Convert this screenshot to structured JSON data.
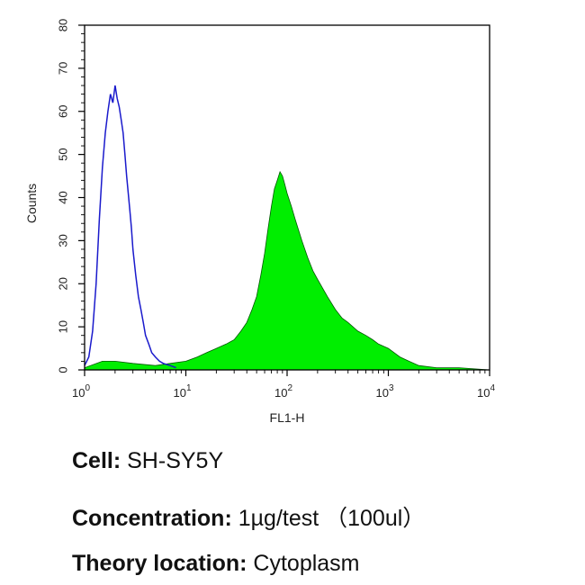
{
  "chart_data": {
    "type": "area",
    "xlabel": "FL1-H",
    "ylabel": "Counts",
    "x_scale": "log",
    "xlim": [
      1,
      10000
    ],
    "ylim": [
      0,
      80
    ],
    "x_ticks": [
      {
        "base": "10",
        "exp": "0",
        "value": 1
      },
      {
        "base": "10",
        "exp": "1",
        "value": 10
      },
      {
        "base": "10",
        "exp": "2",
        "value": 100
      },
      {
        "base": "10",
        "exp": "3",
        "value": 1000
      },
      {
        "base": "10",
        "exp": "4",
        "value": 10000
      }
    ],
    "y_ticks": [
      "0",
      "10",
      "20",
      "30",
      "40",
      "50",
      "60",
      "70",
      "80"
    ],
    "grid": false,
    "series": [
      {
        "style": "outline",
        "color": "#1a1acc",
        "x": [
          1.0,
          1.1,
          1.2,
          1.3,
          1.4,
          1.5,
          1.6,
          1.7,
          1.8,
          1.9,
          2.0,
          2.1,
          2.2,
          2.3,
          2.4,
          2.5,
          2.6,
          2.7,
          2.8,
          2.9,
          3.0,
          3.2,
          3.4,
          3.6,
          3.8,
          4.0,
          4.3,
          4.6,
          5.0,
          5.5,
          6.0,
          7.0,
          8.0
        ],
        "values": [
          1,
          3,
          9,
          20,
          35,
          47,
          55,
          60,
          64,
          62,
          66,
          63,
          61,
          58,
          55,
          50,
          45,
          41,
          37,
          33,
          28,
          22,
          17,
          14,
          11,
          8,
          6,
          4,
          3,
          2,
          1.5,
          1,
          0.5
        ]
      },
      {
        "style": "filled",
        "color": "#00ee00",
        "x": [
          1.0,
          1.5,
          2.0,
          3.0,
          5.0,
          7.0,
          10,
          13,
          16,
          20,
          25,
          30,
          35,
          40,
          45,
          50,
          55,
          60,
          65,
          70,
          75,
          80,
          85,
          90,
          95,
          100,
          110,
          120,
          140,
          160,
          180,
          200,
          250,
          300,
          350,
          400,
          500,
          600,
          700,
          800,
          1000,
          1300,
          1600,
          2000,
          3000,
          5000,
          10000
        ],
        "values": [
          0.5,
          2,
          2,
          1.5,
          1,
          1.5,
          2,
          3,
          4,
          5,
          6,
          7,
          9,
          11,
          14,
          17,
          22,
          27,
          33,
          38,
          42,
          44,
          46,
          45,
          43,
          41,
          38,
          35,
          30,
          26,
          23,
          21,
          17,
          14,
          12,
          11,
          9,
          8,
          7,
          6,
          5,
          3,
          2,
          1,
          0.5,
          0.5,
          0
        ]
      }
    ]
  },
  "captions": [
    {
      "key": "Cell:",
      "value": " SH-SY5Y"
    },
    {
      "key": "Concentration:",
      "value": " 1µg/test （100ul）"
    },
    {
      "key": "Theory location:",
      "value": " Cytoplasm"
    }
  ]
}
